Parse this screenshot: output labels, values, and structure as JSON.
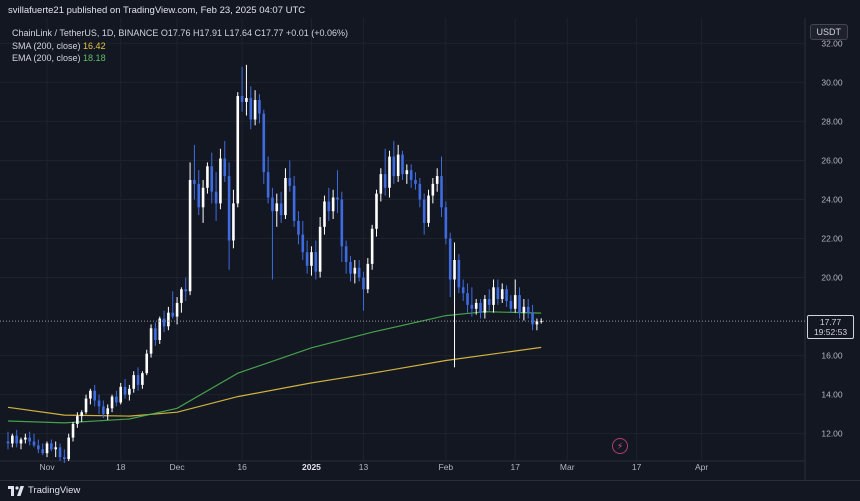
{
  "header": {
    "publisher_line": "svillafuerte21 published on TradingView.com, Feb 23, 2025 04:07 UTC"
  },
  "legend": {
    "symbol": "ChainLink / TetherUS, 1D, BINANCE",
    "ohlc": "O17.76  H17.91  L17.64  C17.77  +0.01 (+0.06%)",
    "sma_label": "SMA (200, close)",
    "sma_value": "16.42",
    "ema_label": "EMA (200, close)",
    "ema_value": "18.18"
  },
  "price_axis": {
    "currency": "USDT",
    "ticks": [
      "32.00",
      "30.00",
      "28.00",
      "26.00",
      "24.00",
      "22.00",
      "20.00",
      "16.00",
      "14.00",
      "12.00"
    ],
    "last_price": "17.77",
    "countdown": "19:52:53"
  },
  "time_axis": {
    "ticks": [
      "Nov",
      "18",
      "Dec",
      "16",
      "2025",
      "13",
      "Feb",
      "17",
      "Mar",
      "17",
      "Apr"
    ]
  },
  "footer": {
    "brand": "TradingView"
  },
  "colors": {
    "background": "#131722",
    "up_candle": "#ffffff",
    "down_candle": "#3f6be0",
    "sma": "#e4c441",
    "ema": "#4caf50",
    "grid": "#1e222d"
  },
  "chart_data": {
    "type": "candlestick",
    "title": "ChainLink / TetherUS, 1D, BINANCE",
    "ylim": [
      10.6,
      33.3
    ],
    "x_range": [
      "2024-10-23",
      "2025-04-23"
    ],
    "candles": [
      {
        "d": "2024-10-23",
        "o": 11.6,
        "h": 12.1,
        "l": 11.2,
        "c": 11.5
      },
      {
        "d": "2024-10-24",
        "o": 11.5,
        "h": 12.0,
        "l": 11.3,
        "c": 11.9
      },
      {
        "d": "2024-10-25",
        "o": 11.9,
        "h": 12.2,
        "l": 11.3,
        "c": 11.5
      },
      {
        "d": "2024-10-26",
        "o": 11.5,
        "h": 11.8,
        "l": 11.2,
        "c": 11.7
      },
      {
        "d": "2024-10-27",
        "o": 11.7,
        "h": 12.0,
        "l": 11.5,
        "c": 11.8
      },
      {
        "d": "2024-10-28",
        "o": 11.8,
        "h": 12.1,
        "l": 11.4,
        "c": 11.6
      },
      {
        "d": "2024-10-29",
        "o": 11.6,
        "h": 12.0,
        "l": 11.3,
        "c": 11.4
      },
      {
        "d": "2024-10-30",
        "o": 11.4,
        "h": 11.7,
        "l": 11.0,
        "c": 11.2
      },
      {
        "d": "2024-10-31",
        "o": 11.2,
        "h": 11.5,
        "l": 10.9,
        "c": 11.0
      },
      {
        "d": "2024-11-01",
        "o": 11.0,
        "h": 11.6,
        "l": 10.8,
        "c": 11.5
      },
      {
        "d": "2024-11-02",
        "o": 11.5,
        "h": 11.7,
        "l": 11.1,
        "c": 11.2
      },
      {
        "d": "2024-11-03",
        "o": 11.2,
        "h": 11.6,
        "l": 10.8,
        "c": 11.3
      },
      {
        "d": "2024-11-04",
        "o": 11.3,
        "h": 11.5,
        "l": 10.6,
        "c": 10.8
      },
      {
        "d": "2024-11-05",
        "o": 10.8,
        "h": 11.2,
        "l": 10.5,
        "c": 10.7
      },
      {
        "d": "2024-11-06",
        "o": 10.7,
        "h": 12.0,
        "l": 10.6,
        "c": 11.8
      },
      {
        "d": "2024-11-07",
        "o": 11.8,
        "h": 12.6,
        "l": 11.6,
        "c": 12.5
      },
      {
        "d": "2024-11-08",
        "o": 12.5,
        "h": 13.1,
        "l": 12.3,
        "c": 12.9
      },
      {
        "d": "2024-11-09",
        "o": 12.9,
        "h": 13.2,
        "l": 12.6,
        "c": 13.1
      },
      {
        "d": "2024-11-10",
        "o": 13.1,
        "h": 14.0,
        "l": 13.0,
        "c": 13.8
      },
      {
        "d": "2024-11-11",
        "o": 13.8,
        "h": 14.3,
        "l": 13.5,
        "c": 14.2
      },
      {
        "d": "2024-11-12",
        "o": 14.2,
        "h": 14.5,
        "l": 13.4,
        "c": 13.7
      },
      {
        "d": "2024-11-13",
        "o": 13.7,
        "h": 14.0,
        "l": 13.0,
        "c": 13.4
      },
      {
        "d": "2024-11-14",
        "o": 13.4,
        "h": 13.7,
        "l": 12.8,
        "c": 13.0
      },
      {
        "d": "2024-11-15",
        "o": 13.0,
        "h": 13.5,
        "l": 12.7,
        "c": 13.3
      },
      {
        "d": "2024-11-16",
        "o": 13.3,
        "h": 14.0,
        "l": 13.1,
        "c": 13.9
      },
      {
        "d": "2024-11-17",
        "o": 13.9,
        "h": 14.2,
        "l": 13.4,
        "c": 13.6
      },
      {
        "d": "2024-11-18",
        "o": 13.6,
        "h": 14.6,
        "l": 13.5,
        "c": 14.4
      },
      {
        "d": "2024-11-19",
        "o": 14.4,
        "h": 14.8,
        "l": 13.8,
        "c": 14.0
      },
      {
        "d": "2024-11-20",
        "o": 14.0,
        "h": 14.5,
        "l": 13.7,
        "c": 14.3
      },
      {
        "d": "2024-11-21",
        "o": 14.3,
        "h": 15.2,
        "l": 14.1,
        "c": 15.0
      },
      {
        "d": "2024-11-22",
        "o": 15.0,
        "h": 15.4,
        "l": 14.2,
        "c": 14.5
      },
      {
        "d": "2024-11-23",
        "o": 14.5,
        "h": 15.2,
        "l": 14.3,
        "c": 15.1
      },
      {
        "d": "2024-11-24",
        "o": 15.1,
        "h": 16.3,
        "l": 15.0,
        "c": 16.1
      },
      {
        "d": "2024-11-25",
        "o": 16.1,
        "h": 17.6,
        "l": 15.9,
        "c": 17.4
      },
      {
        "d": "2024-11-26",
        "o": 17.4,
        "h": 17.7,
        "l": 16.5,
        "c": 16.8
      },
      {
        "d": "2024-11-27",
        "o": 16.8,
        "h": 18.0,
        "l": 16.6,
        "c": 17.9
      },
      {
        "d": "2024-11-28",
        "o": 17.9,
        "h": 18.3,
        "l": 17.2,
        "c": 17.5
      },
      {
        "d": "2024-11-29",
        "o": 17.5,
        "h": 18.5,
        "l": 17.3,
        "c": 18.2
      },
      {
        "d": "2024-11-30",
        "o": 18.2,
        "h": 19.3,
        "l": 17.9,
        "c": 18.0
      },
      {
        "d": "2024-12-01",
        "o": 18.0,
        "h": 19.0,
        "l": 17.6,
        "c": 18.7
      },
      {
        "d": "2024-12-02",
        "o": 18.7,
        "h": 19.5,
        "l": 18.2,
        "c": 19.4
      },
      {
        "d": "2024-12-03",
        "o": 19.4,
        "h": 20.0,
        "l": 18.8,
        "c": 19.3
      },
      {
        "d": "2024-12-04",
        "o": 19.3,
        "h": 25.9,
        "l": 19.1,
        "c": 25.0
      },
      {
        "d": "2024-12-05",
        "o": 25.0,
        "h": 26.8,
        "l": 24.0,
        "c": 24.8
      },
      {
        "d": "2024-12-06",
        "o": 24.8,
        "h": 25.5,
        "l": 23.2,
        "c": 23.6
      },
      {
        "d": "2024-12-07",
        "o": 23.6,
        "h": 25.0,
        "l": 22.8,
        "c": 24.6
      },
      {
        "d": "2024-12-08",
        "o": 24.6,
        "h": 25.9,
        "l": 24.3,
        "c": 25.7
      },
      {
        "d": "2024-12-09",
        "o": 25.7,
        "h": 26.4,
        "l": 23.8,
        "c": 24.4
      },
      {
        "d": "2024-12-10",
        "o": 24.4,
        "h": 25.4,
        "l": 22.9,
        "c": 23.8
      },
      {
        "d": "2024-12-11",
        "o": 23.8,
        "h": 26.6,
        "l": 23.5,
        "c": 26.1
      },
      {
        "d": "2024-12-12",
        "o": 26.1,
        "h": 27.0,
        "l": 24.9,
        "c": 25.2
      },
      {
        "d": "2024-12-13",
        "o": 25.2,
        "h": 25.9,
        "l": 20.4,
        "c": 21.9
      },
      {
        "d": "2024-12-14",
        "o": 21.9,
        "h": 24.5,
        "l": 21.5,
        "c": 23.8
      },
      {
        "d": "2024-12-15",
        "o": 23.8,
        "h": 29.5,
        "l": 23.6,
        "c": 29.3
      },
      {
        "d": "2024-12-16",
        "o": 29.3,
        "h": 30.8,
        "l": 28.5,
        "c": 29.0
      },
      {
        "d": "2024-12-17",
        "o": 29.0,
        "h": 30.9,
        "l": 28.3,
        "c": 29.2
      },
      {
        "d": "2024-12-18",
        "o": 29.2,
        "h": 29.8,
        "l": 27.6,
        "c": 28.1
      },
      {
        "d": "2024-12-19",
        "o": 28.1,
        "h": 29.6,
        "l": 27.8,
        "c": 29.1
      },
      {
        "d": "2024-12-20",
        "o": 29.1,
        "h": 29.4,
        "l": 27.9,
        "c": 28.4
      },
      {
        "d": "2024-12-21",
        "o": 28.4,
        "h": 28.6,
        "l": 24.8,
        "c": 25.4
      },
      {
        "d": "2024-12-22",
        "o": 25.4,
        "h": 26.2,
        "l": 23.8,
        "c": 24.1
      },
      {
        "d": "2024-12-23",
        "o": 24.1,
        "h": 24.6,
        "l": 19.9,
        "c": 23.4
      },
      {
        "d": "2024-12-24",
        "o": 23.4,
        "h": 24.3,
        "l": 22.6,
        "c": 23.8
      },
      {
        "d": "2024-12-25",
        "o": 23.8,
        "h": 24.4,
        "l": 22.8,
        "c": 23.2
      },
      {
        "d": "2024-12-26",
        "o": 23.2,
        "h": 25.6,
        "l": 23.0,
        "c": 25.1
      },
      {
        "d": "2024-12-27",
        "o": 25.1,
        "h": 26.0,
        "l": 24.4,
        "c": 24.7
      },
      {
        "d": "2024-12-28",
        "o": 24.7,
        "h": 25.2,
        "l": 22.6,
        "c": 22.9
      },
      {
        "d": "2024-12-29",
        "o": 22.9,
        "h": 23.4,
        "l": 21.7,
        "c": 22.2
      },
      {
        "d": "2024-12-30",
        "o": 22.2,
        "h": 22.9,
        "l": 20.9,
        "c": 21.3
      },
      {
        "d": "2024-12-31",
        "o": 21.3,
        "h": 21.9,
        "l": 20.2,
        "c": 20.6
      },
      {
        "d": "2025-01-01",
        "o": 20.6,
        "h": 21.6,
        "l": 20.1,
        "c": 21.3
      },
      {
        "d": "2025-01-02",
        "o": 21.3,
        "h": 21.9,
        "l": 19.9,
        "c": 20.3
      },
      {
        "d": "2025-01-03",
        "o": 20.3,
        "h": 23.1,
        "l": 20.0,
        "c": 22.6
      },
      {
        "d": "2025-01-04",
        "o": 22.6,
        "h": 24.2,
        "l": 22.2,
        "c": 23.9
      },
      {
        "d": "2025-01-05",
        "o": 23.9,
        "h": 24.6,
        "l": 22.9,
        "c": 23.4
      },
      {
        "d": "2025-01-06",
        "o": 23.4,
        "h": 24.5,
        "l": 23.0,
        "c": 24.1
      },
      {
        "d": "2025-01-07",
        "o": 24.1,
        "h": 25.5,
        "l": 23.3,
        "c": 24.0
      },
      {
        "d": "2025-01-08",
        "o": 24.0,
        "h": 24.4,
        "l": 20.8,
        "c": 21.6
      },
      {
        "d": "2025-01-09",
        "o": 21.6,
        "h": 21.9,
        "l": 20.2,
        "c": 20.8
      },
      {
        "d": "2025-01-10",
        "o": 20.8,
        "h": 21.1,
        "l": 19.8,
        "c": 20.2
      },
      {
        "d": "2025-01-11",
        "o": 20.2,
        "h": 20.9,
        "l": 19.7,
        "c": 20.5
      },
      {
        "d": "2025-01-12",
        "o": 20.5,
        "h": 20.9,
        "l": 19.8,
        "c": 20.0
      },
      {
        "d": "2025-01-13",
        "o": 20.0,
        "h": 20.3,
        "l": 18.3,
        "c": 19.4
      },
      {
        "d": "2025-01-14",
        "o": 19.4,
        "h": 21.0,
        "l": 19.2,
        "c": 20.7
      },
      {
        "d": "2025-01-15",
        "o": 20.7,
        "h": 22.7,
        "l": 20.4,
        "c": 22.5
      },
      {
        "d": "2025-01-16",
        "o": 22.5,
        "h": 24.5,
        "l": 22.1,
        "c": 24.3
      },
      {
        "d": "2025-01-17",
        "o": 24.3,
        "h": 25.6,
        "l": 23.9,
        "c": 25.3
      },
      {
        "d": "2025-01-18",
        "o": 25.3,
        "h": 26.6,
        "l": 24.2,
        "c": 24.6
      },
      {
        "d": "2025-01-19",
        "o": 24.6,
        "h": 26.5,
        "l": 24.1,
        "c": 26.2
      },
      {
        "d": "2025-01-20",
        "o": 26.2,
        "h": 27.0,
        "l": 24.8,
        "c": 25.2
      },
      {
        "d": "2025-01-21",
        "o": 25.2,
        "h": 26.8,
        "l": 24.9,
        "c": 26.3
      },
      {
        "d": "2025-01-22",
        "o": 26.3,
        "h": 26.5,
        "l": 25.0,
        "c": 25.3
      },
      {
        "d": "2025-01-23",
        "o": 25.3,
        "h": 25.8,
        "l": 24.8,
        "c": 25.5
      },
      {
        "d": "2025-01-24",
        "o": 25.5,
        "h": 25.8,
        "l": 24.6,
        "c": 25.0
      },
      {
        "d": "2025-01-25",
        "o": 25.0,
        "h": 25.4,
        "l": 24.5,
        "c": 24.8
      },
      {
        "d": "2025-01-26",
        "o": 24.8,
        "h": 25.1,
        "l": 23.6,
        "c": 24.0
      },
      {
        "d": "2025-01-27",
        "o": 24.0,
        "h": 24.3,
        "l": 22.2,
        "c": 22.8
      },
      {
        "d": "2025-01-28",
        "o": 22.8,
        "h": 24.5,
        "l": 22.6,
        "c": 24.2
      },
      {
        "d": "2025-01-29",
        "o": 24.2,
        "h": 25.1,
        "l": 23.8,
        "c": 24.8
      },
      {
        "d": "2025-01-30",
        "o": 24.8,
        "h": 25.6,
        "l": 24.4,
        "c": 25.2
      },
      {
        "d": "2025-01-31",
        "o": 25.2,
        "h": 26.2,
        "l": 23.1,
        "c": 23.6
      },
      {
        "d": "2025-02-01",
        "o": 23.6,
        "h": 23.9,
        "l": 21.7,
        "c": 22.0
      },
      {
        "d": "2025-02-02",
        "o": 22.0,
        "h": 22.3,
        "l": 19.0,
        "c": 19.9
      },
      {
        "d": "2025-02-03",
        "o": 19.9,
        "h": 21.8,
        "l": 15.4,
        "c": 20.9
      },
      {
        "d": "2025-02-04",
        "o": 20.9,
        "h": 21.2,
        "l": 19.2,
        "c": 19.5
      },
      {
        "d": "2025-02-05",
        "o": 19.5,
        "h": 19.9,
        "l": 18.8,
        "c": 19.2
      },
      {
        "d": "2025-02-06",
        "o": 19.2,
        "h": 19.7,
        "l": 18.2,
        "c": 18.6
      },
      {
        "d": "2025-02-07",
        "o": 18.6,
        "h": 19.5,
        "l": 18.0,
        "c": 18.4
      },
      {
        "d": "2025-02-08",
        "o": 18.4,
        "h": 18.9,
        "l": 18.1,
        "c": 18.7
      },
      {
        "d": "2025-02-09",
        "o": 18.7,
        "h": 18.9,
        "l": 17.9,
        "c": 18.2
      },
      {
        "d": "2025-02-10",
        "o": 18.2,
        "h": 19.1,
        "l": 17.9,
        "c": 18.9
      },
      {
        "d": "2025-02-11",
        "o": 18.9,
        "h": 19.4,
        "l": 18.3,
        "c": 18.6
      },
      {
        "d": "2025-02-12",
        "o": 18.6,
        "h": 19.9,
        "l": 18.2,
        "c": 19.5
      },
      {
        "d": "2025-02-13",
        "o": 19.5,
        "h": 19.9,
        "l": 18.6,
        "c": 18.9
      },
      {
        "d": "2025-02-14",
        "o": 18.9,
        "h": 19.7,
        "l": 18.7,
        "c": 19.4
      },
      {
        "d": "2025-02-15",
        "o": 19.4,
        "h": 19.6,
        "l": 18.5,
        "c": 18.8
      },
      {
        "d": "2025-02-16",
        "o": 18.8,
        "h": 19.1,
        "l": 18.2,
        "c": 18.4
      },
      {
        "d": "2025-02-17",
        "o": 18.4,
        "h": 19.9,
        "l": 18.2,
        "c": 19.1
      },
      {
        "d": "2025-02-18",
        "o": 19.1,
        "h": 19.5,
        "l": 17.9,
        "c": 18.2
      },
      {
        "d": "2025-02-19",
        "o": 18.2,
        "h": 18.9,
        "l": 17.8,
        "c": 18.5
      },
      {
        "d": "2025-02-20",
        "o": 18.5,
        "h": 18.9,
        "l": 17.9,
        "c": 18.2
      },
      {
        "d": "2025-02-21",
        "o": 18.2,
        "h": 18.6,
        "l": 17.3,
        "c": 17.6
      },
      {
        "d": "2025-02-22",
        "o": 17.6,
        "h": 17.9,
        "l": 17.3,
        "c": 17.76
      },
      {
        "d": "2025-02-23",
        "o": 17.76,
        "h": 17.91,
        "l": 17.64,
        "c": 17.77
      }
    ],
    "series": [
      {
        "name": "SMA (200, close)",
        "points": [
          [
            "2024-10-23",
            13.35
          ],
          [
            "2024-11-05",
            12.95
          ],
          [
            "2024-11-20",
            12.9
          ],
          [
            "2024-12-01",
            13.1
          ],
          [
            "2024-12-15",
            13.9
          ],
          [
            "2025-01-01",
            14.6
          ],
          [
            "2025-01-15",
            15.1
          ],
          [
            "2025-02-01",
            15.75
          ],
          [
            "2025-02-23",
            16.42
          ]
        ]
      },
      {
        "name": "EMA (200, close)",
        "points": [
          [
            "2024-10-23",
            12.65
          ],
          [
            "2024-11-05",
            12.55
          ],
          [
            "2024-11-20",
            12.75
          ],
          [
            "2024-12-01",
            13.3
          ],
          [
            "2024-12-15",
            15.1
          ],
          [
            "2025-01-01",
            16.4
          ],
          [
            "2025-01-15",
            17.2
          ],
          [
            "2025-02-01",
            18.05
          ],
          [
            "2025-02-10",
            18.25
          ],
          [
            "2025-02-23",
            18.18
          ]
        ]
      }
    ]
  }
}
